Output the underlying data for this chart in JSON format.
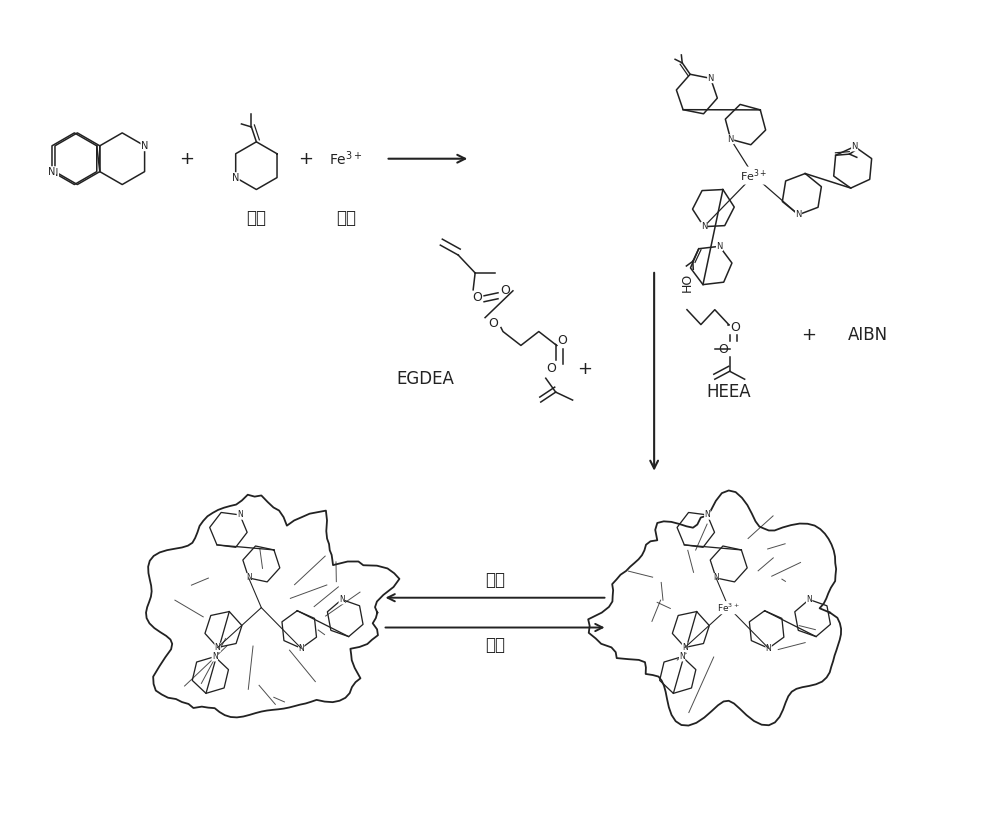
{
  "bg_color": "#ffffff",
  "text_color": "#000000",
  "line_color": "#333333",
  "labels": {
    "monomer": "单体",
    "template": "模板",
    "fe3plus": "Fe$^{3+}$",
    "egdea": "EGDEA",
    "heea": "HEEA",
    "aibn": "AIBN",
    "remove": "除去",
    "chelate": "络合"
  }
}
